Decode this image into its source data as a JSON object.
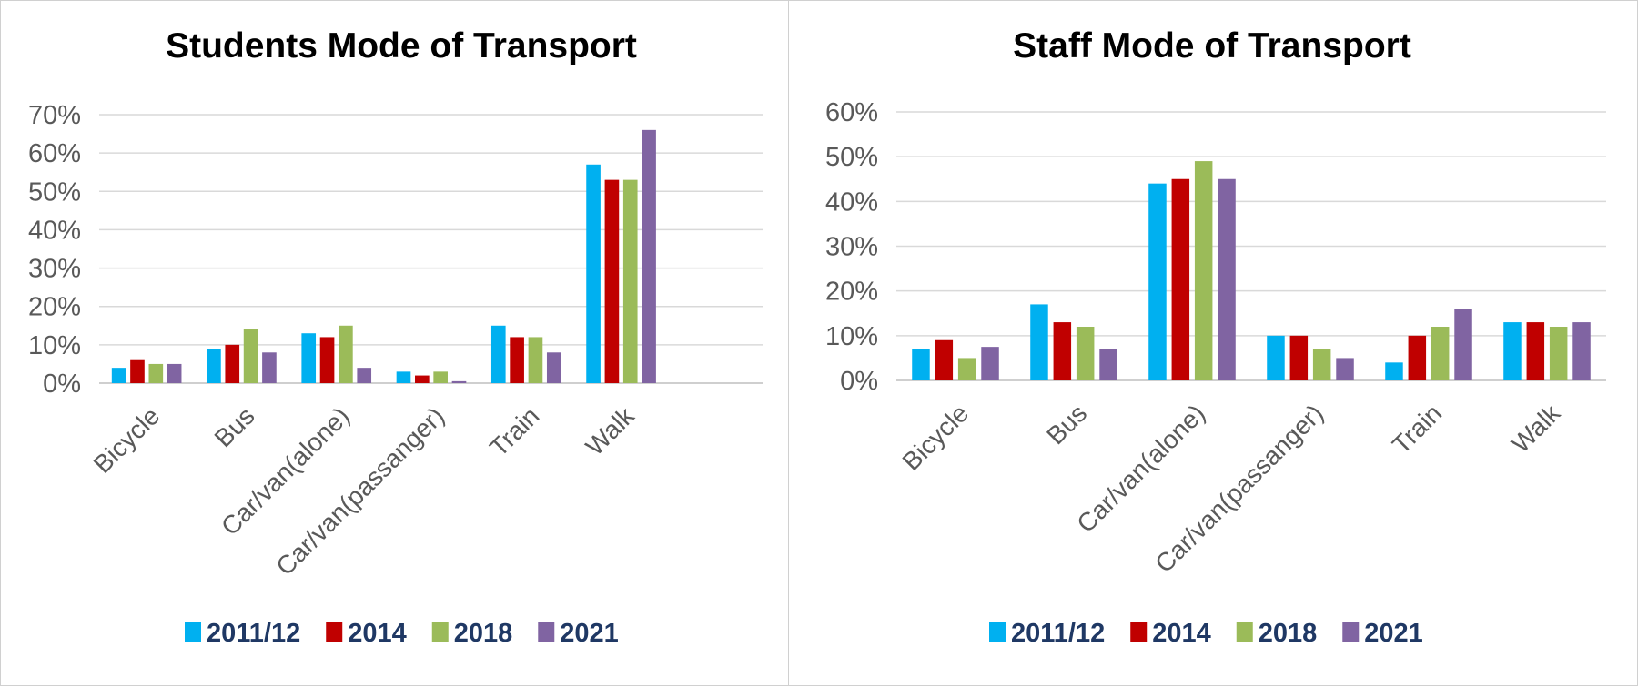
{
  "chart_data": [
    {
      "type": "bar",
      "title": "Students Mode of Transport",
      "categories": [
        "Bicycle",
        "Bus",
        "Car/van(alone)",
        "Car/van(passanger)",
        "Train",
        "Walk"
      ],
      "ylim": [
        0,
        70
      ],
      "yticks": [
        "0%",
        "10%",
        "20%",
        "30%",
        "40%",
        "50%",
        "60%",
        "70%"
      ],
      "grid": true,
      "legend_position": "bottom",
      "series": [
        {
          "name": "2011/12",
          "color": "#00b0f0",
          "values": [
            4,
            9,
            13,
            3,
            15,
            57
          ]
        },
        {
          "name": "2014",
          "color": "#c00000",
          "values": [
            6,
            10,
            12,
            2,
            12,
            53
          ]
        },
        {
          "name": "2018",
          "color": "#9bbb59",
          "values": [
            5,
            14,
            15,
            3,
            12,
            53
          ]
        },
        {
          "name": "2021",
          "color": "#8064a2",
          "values": [
            5,
            8,
            4,
            0.5,
            8,
            66
          ]
        }
      ]
    },
    {
      "type": "bar",
      "title": "Staff Mode of Transport",
      "categories": [
        "Bicycle",
        "Bus",
        "Car/van(alone)",
        "Car/van(passanger)",
        "Train",
        "Walk"
      ],
      "ylim": [
        0,
        60
      ],
      "yticks": [
        "0%",
        "10%",
        "20%",
        "30%",
        "40%",
        "50%",
        "60%"
      ],
      "grid": true,
      "legend_position": "bottom",
      "series": [
        {
          "name": "2011/12",
          "color": "#00b0f0",
          "values": [
            7,
            17,
            44,
            10,
            4,
            13
          ]
        },
        {
          "name": "2014",
          "color": "#c00000",
          "values": [
            9,
            13,
            45,
            10,
            10,
            13
          ]
        },
        {
          "name": "2018",
          "color": "#9bbb59",
          "values": [
            5,
            12,
            49,
            7,
            12,
            12
          ]
        },
        {
          "name": "2021",
          "color": "#8064a2",
          "values": [
            7.5,
            7,
            45,
            5,
            16,
            13
          ]
        }
      ]
    }
  ]
}
